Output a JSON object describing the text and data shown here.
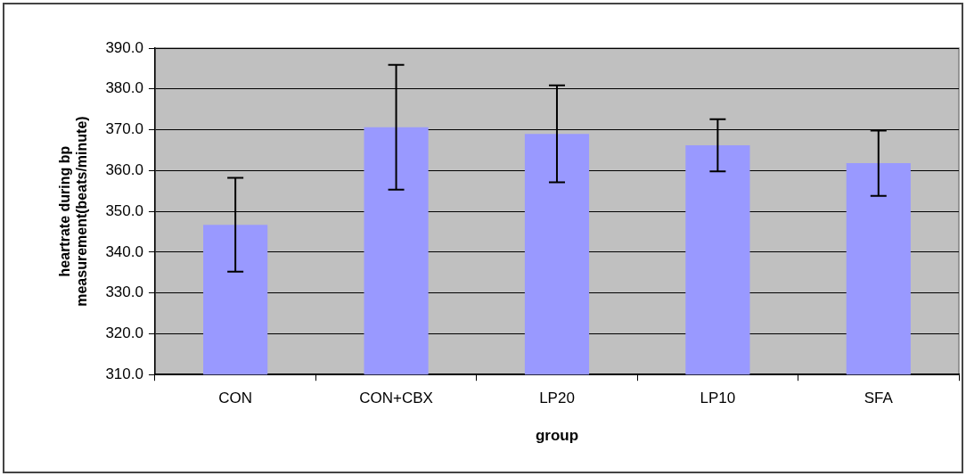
{
  "chart_data": {
    "type": "bar",
    "xlabel": "group",
    "ylabel": "heartrate during bp measurement(beats/minute)",
    "categories": [
      "CON",
      "CON+CBX",
      "LP20",
      "LP10",
      "SFA"
    ],
    "values": [
      346.7,
      370.6,
      369.0,
      366.2,
      361.8
    ],
    "errors": [
      11.5,
      15.3,
      11.9,
      6.4,
      8.0
    ],
    "color": "#9999ff",
    "ylim": [
      310,
      390
    ],
    "yticks": [
      {
        "value": 310,
        "label": "310.0"
      },
      {
        "value": 320,
        "label": "320.0"
      },
      {
        "value": 330,
        "label": "330.0"
      },
      {
        "value": 340,
        "label": "340.0"
      },
      {
        "value": 350,
        "label": "350.0"
      },
      {
        "value": 360,
        "label": "360.0"
      },
      {
        "value": 370,
        "label": "370.0"
      },
      {
        "value": 380,
        "label": "380.0"
      },
      {
        "value": 390,
        "label": "390.0"
      }
    ],
    "grid": "y",
    "legend": false
  }
}
